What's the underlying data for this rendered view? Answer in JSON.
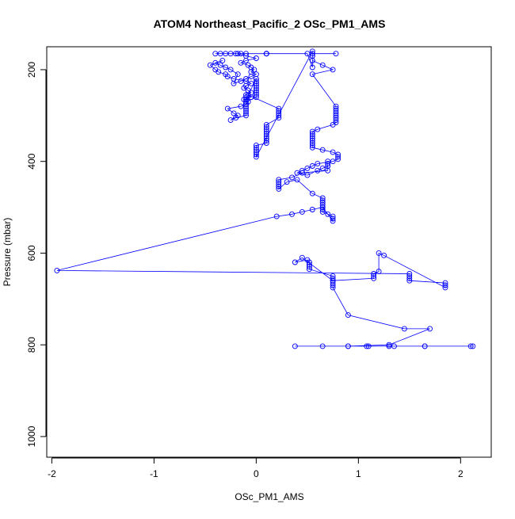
{
  "chart_data": {
    "type": "line",
    "title": "ATOM4 Northeast_Pacific_2 OSc_PM1_AMS",
    "xlabel": "OSc_PM1_AMS",
    "ylabel": "Pressure (mbar)",
    "xlim": [
      -2.05,
      2.3
    ],
    "ylim": [
      1045,
      150
    ],
    "y_reversed": true,
    "xticks": [
      -2,
      -1,
      0,
      1,
      2
    ],
    "yticks": [
      200,
      400,
      600,
      800,
      1000
    ],
    "grid": false,
    "legend": "none",
    "style": {
      "color": "#0000ff",
      "marker": "open-circle"
    },
    "series": [
      {
        "x": [
          0.78,
          0.55,
          0.55,
          0.55,
          0.55,
          0.5,
          0.1,
          0.1,
          0.1,
          0.1,
          -0.1,
          -0.15,
          -0.2,
          -0.25,
          -0.3,
          -0.35,
          -0.4,
          -0.18,
          -0.1,
          0.0,
          -0.1,
          -0.15,
          -0.08,
          -0.05,
          -0.02,
          -0.05,
          0.0,
          -0.05,
          -0.1,
          -0.15,
          -0.22,
          -0.18,
          -0.25,
          -0.3,
          -0.35,
          -0.4,
          -0.33,
          -0.45,
          -0.4,
          -0.37,
          -0.3,
          -0.28,
          -0.22,
          -0.1,
          -0.05,
          -0.1,
          -0.12,
          -0.08,
          -0.05,
          -0.1,
          -0.1,
          -0.1,
          0.0,
          0.0,
          0.0,
          0.0,
          0.0,
          0.0,
          0.0,
          0.0,
          0.0,
          -0.1,
          -0.1,
          -0.1,
          -0.1,
          -0.1,
          -0.1,
          -0.1,
          -0.2,
          -0.25,
          -0.18,
          -0.22,
          -0.28,
          -0.15,
          -0.1,
          -0.08,
          -0.12,
          -0.05,
          -0.08,
          0.22,
          0.22,
          0.22,
          0.22,
          0.22,
          0.1,
          0.1,
          0.1,
          0.1,
          0.1,
          0.1,
          0.1,
          0.1,
          0.1,
          0.0,
          0.0,
          0.0,
          0.0,
          0.0,
          0.0,
          0.55,
          0.55,
          0.55,
          0.65,
          0.75,
          0.55,
          0.78,
          0.78,
          0.78,
          0.78,
          0.78,
          0.78,
          0.78,
          0.78,
          0.75,
          0.6,
          0.55,
          0.55,
          0.55,
          0.55,
          0.55,
          0.55,
          0.55,
          0.55,
          0.65,
          0.75,
          0.8,
          0.8,
          0.8,
          0.75,
          0.6,
          0.55,
          0.5,
          0.45,
          0.4,
          0.5,
          0.6,
          0.65,
          0.7,
          0.7,
          0.7,
          0.7,
          0.45,
          0.35,
          0.22,
          0.22,
          0.22,
          0.22,
          0.22,
          0.3,
          0.4,
          0.55,
          0.65,
          0.65,
          0.65,
          0.65,
          0.65,
          0.65,
          0.65,
          0.7,
          0.75,
          0.75,
          0.75,
          0.65,
          0.55,
          0.45,
          0.35,
          0.2,
          -1.95,
          1.5,
          1.5,
          1.5,
          1.5,
          1.85,
          1.85,
          1.85,
          1.25,
          1.2,
          1.2,
          1.15,
          1.15,
          1.15,
          0.75,
          0.45,
          0.38,
          0.5,
          0.52,
          0.52,
          0.52,
          0.52,
          0.75,
          0.75,
          0.75,
          0.75,
          0.75,
          0.75,
          0.9,
          1.45,
          1.7,
          1.3,
          0.9,
          0.38,
          0.65,
          0.9,
          1.08,
          1.1,
          1.35,
          1.65,
          2.1,
          2.12,
          1.65,
          1.3
        ],
        "y": [
          165,
          165,
          170,
          180,
          195,
          165,
          165,
          165,
          165,
          165,
          165,
          165,
          165,
          165,
          165,
          165,
          165,
          165,
          170,
          175,
          180,
          185,
          190,
          195,
          200,
          205,
          210,
          215,
          220,
          225,
          230,
          210,
          200,
          195,
          190,
          185,
          180,
          190,
          200,
          205,
          210,
          215,
          220,
          225,
          230,
          235,
          240,
          245,
          250,
          255,
          260,
          265,
          220,
          225,
          230,
          235,
          240,
          245,
          250,
          255,
          260,
          270,
          275,
          280,
          285,
          290,
          295,
          300,
          305,
          310,
          300,
          295,
          285,
          280,
          275,
          270,
          265,
          260,
          255,
          285,
          290,
          295,
          300,
          305,
          320,
          325,
          330,
          335,
          340,
          345,
          350,
          355,
          360,
          365,
          370,
          375,
          380,
          385,
          390,
          160,
          170,
          180,
          190,
          200,
          210,
          280,
          285,
          290,
          295,
          300,
          305,
          310,
          315,
          320,
          330,
          335,
          340,
          345,
          350,
          355,
          360,
          365,
          370,
          375,
          380,
          385,
          390,
          395,
          400,
          405,
          410,
          415,
          420,
          425,
          430,
          420,
          415,
          410,
          405,
          400,
          420,
          425,
          435,
          440,
          445,
          450,
          455,
          460,
          445,
          440,
          470,
          480,
          485,
          490,
          495,
          500,
          505,
          510,
          515,
          520,
          525,
          530,
          500,
          505,
          510,
          515,
          520,
          638,
          645,
          650,
          655,
          660,
          665,
          670,
          675,
          605,
          600,
          640,
          645,
          650,
          655,
          660,
          610,
          620,
          615,
          620,
          625,
          630,
          635,
          650,
          655,
          660,
          665,
          670,
          675,
          735,
          765,
          765,
          800,
          803,
          803,
          803,
          803,
          803,
          803,
          803,
          803,
          803,
          803,
          803,
          803
        ]
      }
    ]
  }
}
